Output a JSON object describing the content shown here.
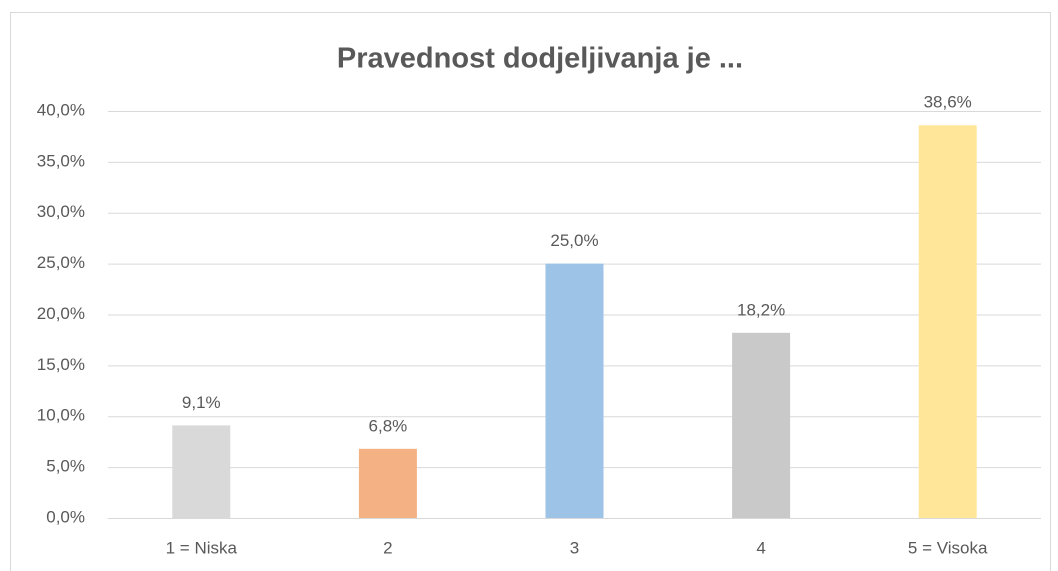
{
  "chart_data": {
    "type": "bar",
    "title": "Pravednost dodjeljivanja je ...",
    "categories": [
      "1 = Niska",
      "2",
      "3",
      "4",
      "5 = Visoka"
    ],
    "values": [
      9.1,
      6.8,
      25.0,
      18.2,
      38.6
    ],
    "value_labels": [
      "9,1%",
      "6,8%",
      "25,0%",
      "18,2%",
      "38,6%"
    ],
    "colors": [
      "#d9d9d9",
      "#f4b183",
      "#9dc3e6",
      "#c9c9c9",
      "#ffe699"
    ],
    "ylim": [
      0,
      40
    ],
    "yticks": [
      {
        "value": 0,
        "label": "0,0%"
      },
      {
        "value": 5,
        "label": "5,0%"
      },
      {
        "value": 10,
        "label": "10,0%"
      },
      {
        "value": 15,
        "label": "15,0%"
      },
      {
        "value": 20,
        "label": "20,0%"
      },
      {
        "value": 25,
        "label": "25,0%"
      },
      {
        "value": 30,
        "label": "30,0%"
      },
      {
        "value": 35,
        "label": "35,0%"
      },
      {
        "value": 40,
        "label": "40,0%"
      }
    ],
    "grid": true
  }
}
